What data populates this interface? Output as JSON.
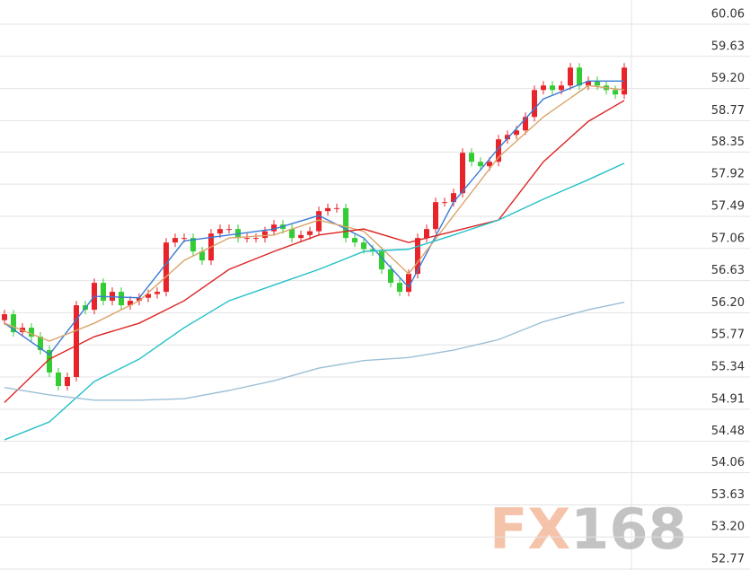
{
  "chart_data": {
    "type": "candlestick",
    "watermark": "FX168",
    "ylim": [
      52.77,
      60.06
    ],
    "yticks": [
      60.06,
      59.63,
      {
        "value": 59.2,
        "label": "59.20"
      },
      58.77,
      58.35,
      57.92,
      57.49,
      57.06,
      56.63,
      {
        "value": 56.2,
        "label": "56.20"
      },
      55.77,
      55.34,
      54.91,
      54.48,
      54.06,
      53.63,
      {
        "value": 53.2,
        "label": "53.20"
      },
      52.77
    ],
    "grid": true,
    "up_color": "#e8242a",
    "down_color": "#33cc33",
    "open": [
      56.1,
      56.18,
      55.94,
      56.0,
      55.88,
      55.7,
      55.4,
      55.22,
      55.34,
      56.3,
      56.24,
      56.6,
      56.36,
      56.48,
      56.3,
      56.36,
      56.4,
      56.45,
      56.48,
      57.14,
      57.2,
      57.2,
      57.02,
      56.9,
      57.26,
      57.32,
      57.32,
      57.2,
      57.2,
      57.2,
      57.29,
      57.38,
      57.32,
      57.2,
      57.24,
      57.29,
      57.56,
      57.6,
      57.6,
      57.2,
      57.14,
      57.05,
      57.02,
      56.78,
      56.6,
      56.48,
      56.72,
      57.2,
      57.32,
      57.68,
      57.68,
      57.8,
      58.34,
      58.22,
      58.16,
      58.22,
      58.52,
      58.58,
      58.64,
      58.82,
      59.18,
      59.24,
      59.18,
      59.24,
      59.48,
      59.24,
      59.3,
      59.24,
      59.18,
      59.12
    ],
    "high": [
      56.24,
      56.24,
      56.06,
      56.06,
      55.94,
      55.76,
      55.46,
      55.4,
      56.36,
      56.36,
      56.66,
      56.66,
      56.54,
      56.54,
      56.42,
      56.46,
      56.51,
      56.54,
      57.2,
      57.26,
      57.26,
      57.26,
      57.08,
      57.32,
      57.38,
      57.38,
      57.38,
      57.26,
      57.26,
      57.35,
      57.44,
      57.44,
      57.38,
      57.3,
      57.35,
      57.62,
      57.66,
      57.66,
      57.66,
      57.26,
      57.2,
      57.11,
      57.08,
      56.84,
      56.66,
      56.78,
      57.26,
      57.38,
      57.74,
      57.74,
      57.86,
      58.4,
      58.4,
      58.28,
      58.28,
      58.58,
      58.64,
      58.7,
      58.88,
      59.24,
      59.3,
      59.3,
      59.3,
      59.54,
      59.54,
      59.36,
      59.36,
      59.3,
      59.24,
      59.54
    ],
    "low": [
      56.04,
      55.88,
      55.88,
      55.82,
      55.64,
      55.34,
      55.16,
      55.16,
      55.28,
      56.18,
      56.18,
      56.3,
      56.3,
      56.24,
      56.24,
      56.3,
      56.34,
      56.39,
      56.42,
      57.08,
      57.14,
      56.96,
      56.84,
      56.84,
      57.2,
      57.26,
      57.14,
      57.14,
      57.14,
      57.14,
      57.23,
      57.26,
      57.14,
      57.14,
      57.18,
      57.23,
      57.5,
      57.54,
      57.14,
      57.08,
      56.99,
      56.96,
      56.72,
      56.54,
      56.42,
      56.42,
      56.66,
      57.14,
      57.26,
      57.62,
      57.62,
      57.74,
      58.16,
      58.1,
      58.1,
      58.16,
      58.46,
      58.52,
      58.58,
      58.76,
      59.12,
      59.12,
      59.12,
      59.18,
      59.18,
      59.18,
      59.18,
      59.12,
      59.06,
      59.06
    ],
    "close": [
      56.18,
      55.94,
      56.0,
      55.88,
      55.7,
      55.4,
      55.22,
      55.34,
      56.3,
      56.24,
      56.6,
      56.36,
      56.48,
      56.3,
      56.36,
      56.4,
      56.45,
      56.48,
      57.14,
      57.2,
      57.2,
      57.02,
      56.9,
      57.26,
      57.32,
      57.32,
      57.2,
      57.2,
      57.2,
      57.29,
      57.38,
      57.32,
      57.2,
      57.24,
      57.29,
      57.56,
      57.6,
      57.6,
      57.2,
      57.14,
      57.05,
      57.02,
      56.78,
      56.6,
      56.48,
      56.72,
      57.2,
      57.32,
      57.68,
      57.68,
      57.8,
      58.34,
      58.22,
      58.16,
      58.22,
      58.52,
      58.58,
      58.64,
      58.82,
      59.18,
      59.24,
      59.18,
      59.24,
      59.48,
      59.24,
      59.3,
      59.24,
      59.18,
      59.12,
      59.48
    ],
    "ma_x": [
      0,
      5,
      10,
      15,
      20,
      25,
      30,
      35,
      40,
      45,
      50,
      55,
      60,
      65,
      69
    ],
    "series": [
      {
        "color": "#3a7bd5",
        "values": [
          56.06,
          55.64,
          56.42,
          56.4,
          57.16,
          57.24,
          57.32,
          57.5,
          57.2,
          56.54,
          57.68,
          58.4,
          59.06,
          59.3,
          59.3
        ]
      },
      {
        "color": "#d9a46a",
        "values": [
          56.06,
          55.82,
          56.06,
          56.36,
          56.9,
          57.2,
          57.24,
          57.44,
          57.29,
          56.72,
          57.5,
          58.28,
          58.82,
          59.24,
          59.18
        ]
      },
      {
        "color": "#dd2222",
        "values": [
          55.0,
          55.58,
          55.88,
          56.06,
          56.36,
          56.78,
          57.02,
          57.24,
          57.32,
          57.14,
          57.29,
          57.44,
          58.22,
          58.76,
          59.04
        ]
      },
      {
        "color": "#22c0c8",
        "values": [
          54.5,
          54.74,
          55.28,
          55.58,
          56.0,
          56.36,
          56.57,
          56.78,
          57.02,
          57.05,
          57.24,
          57.44,
          57.72,
          57.98,
          58.2
        ]
      },
      {
        "color": "#9bbfd6",
        "values": [
          55.2,
          55.1,
          55.03,
          55.03,
          55.05,
          55.16,
          55.29,
          55.46,
          55.56,
          55.6,
          55.7,
          55.84,
          56.08,
          56.24,
          56.34
        ]
      }
    ]
  }
}
